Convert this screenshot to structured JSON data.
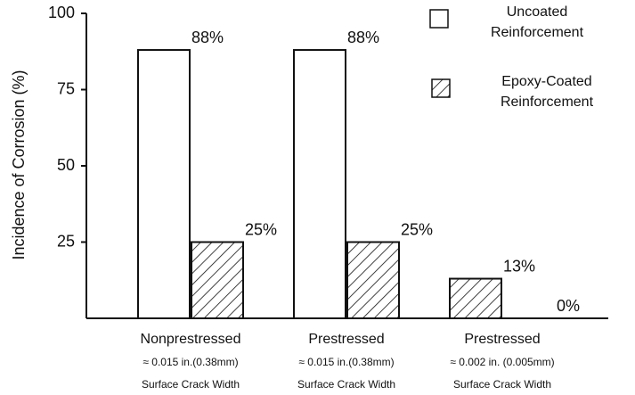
{
  "chart_data": {
    "type": "bar",
    "y_label": "Incidence of Corrosion (%)",
    "categories": [
      [
        "Nonprestressed",
        "≈ 0.015 in.(0.38mm)",
        "Surface Crack Width"
      ],
      [
        "Prestressed",
        "≈ 0.015 in.(0.38mm)",
        "Surface Crack Width"
      ],
      [
        "Prestressed",
        "≈ 0.002 in. (0.005mm)",
        "Surface Crack Width"
      ]
    ],
    "series": [
      {
        "name": "Uncoated Reinforcement",
        "color": "#ffffff",
        "hatch": false,
        "values": [
          88,
          88,
          0
        ],
        "value_labels": [
          "88%",
          "88%",
          "0%"
        ]
      },
      {
        "name": "Epoxy-Coated Reinforcement",
        "color": "#ffffff",
        "hatch": true,
        "values": [
          25,
          25,
          13
        ],
        "value_labels": [
          "25%",
          "25%",
          "13%"
        ]
      }
    ],
    "ylim": [
      0,
      100
    ],
    "yticks": [
      25,
      50,
      75,
      100
    ],
    "grid": false,
    "legend": "top-right"
  }
}
